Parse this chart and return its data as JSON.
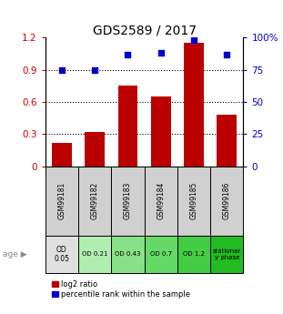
{
  "title": "GDS2589 / 2017",
  "samples": [
    "GSM99181",
    "GSM99182",
    "GSM99183",
    "GSM99184",
    "GSM99185",
    "GSM99186"
  ],
  "log2_ratio": [
    0.22,
    0.32,
    0.75,
    0.65,
    1.15,
    0.48
  ],
  "percentile_rank": [
    75,
    75,
    87,
    88,
    98,
    87
  ],
  "bar_color": "#bb0000",
  "dot_color": "#0000cc",
  "ylim_left": [
    0,
    1.2
  ],
  "ylim_right": [
    0,
    100
  ],
  "yticks_left": [
    0,
    0.3,
    0.6,
    0.9,
    1.2
  ],
  "yticks_right": [
    0,
    25,
    50,
    75,
    100
  ],
  "ytick_labels_left": [
    "0",
    "0.3",
    "0.6",
    "0.9",
    "1.2"
  ],
  "ytick_labels_right": [
    "0",
    "25",
    "50",
    "75",
    "100%"
  ],
  "age_labels": [
    "OD\n0.05",
    "OD 0.21",
    "OD 0.43",
    "OD 0.7",
    "OD 1.2",
    "stationar\ny phase"
  ],
  "age_colors": [
    "#e0e0e0",
    "#b0eeb0",
    "#88e088",
    "#66d866",
    "#44cc44",
    "#22bb22"
  ],
  "legend_labels": [
    "log2 ratio",
    "percentile rank within the sample"
  ],
  "axis_label_color_left": "#cc0000",
  "axis_label_color_right": "#0000cc",
  "sample_bg_color": "#d0d0d0",
  "title_fontsize": 10
}
